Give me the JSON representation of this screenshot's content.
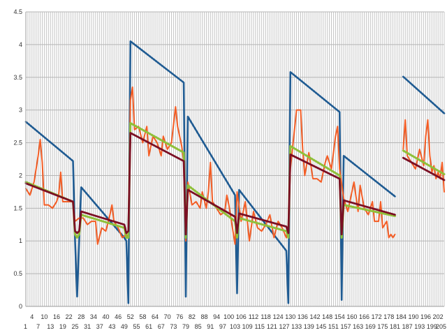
{
  "chart_data": {
    "type": "line",
    "title": "",
    "xlabel": "",
    "ylabel": "",
    "ylim": [
      0,
      4.5
    ],
    "xlim": [
      1,
      205
    ],
    "grid": true,
    "legend": "none",
    "y_ticks": [
      "0",
      "0.5",
      "1",
      "1.5",
      "2",
      "2.5",
      "3",
      "3.5",
      "4",
      "4.5"
    ],
    "x_ticks_top": [
      "4",
      "10",
      "16",
      "22",
      "28",
      "34",
      "40",
      "46",
      "52",
      "58",
      "64",
      "70",
      "76",
      "82",
      "88",
      "94",
      "100",
      "106",
      "112",
      "118",
      "124",
      "130",
      "136",
      "142",
      "148",
      "154",
      "160",
      "166",
      "172",
      "178",
      "184",
      "190",
      "196",
      "202"
    ],
    "x_ticks_bottom": [
      "1",
      "7",
      "13",
      "19",
      "25",
      "31",
      "37",
      "43",
      "49",
      "55",
      "61",
      "67",
      "73",
      "79",
      "85",
      "91",
      "97",
      "103",
      "109",
      "115",
      "121",
      "127",
      "133",
      "139",
      "145",
      "151",
      "157",
      "163",
      "169",
      "175",
      "181",
      "187",
      "193",
      "199",
      "205"
    ],
    "series": [
      {
        "color": "#1f5b92",
        "points": [
          [
            1,
            2.82
          ],
          [
            24,
            2.22
          ],
          [
            25,
            1.0
          ],
          [
            26,
            0.15
          ],
          [
            27,
            1.0
          ],
          [
            28,
            1.82
          ],
          [
            49,
            1.05
          ],
          [
            50,
            1.0
          ],
          [
            51,
            0.05
          ],
          [
            52,
            4.05
          ],
          [
            78,
            3.42
          ],
          [
            79,
            0.15
          ],
          [
            80,
            2.9
          ],
          [
            103,
            1.7
          ],
          [
            104,
            0.2
          ],
          [
            105,
            1.78
          ],
          [
            128,
            0.85
          ],
          [
            129,
            0.05
          ],
          [
            130,
            3.58
          ],
          [
            154,
            2.97
          ],
          [
            155,
            0.1
          ],
          [
            156,
            2.3
          ],
          [
            181,
            1.68
          ],
          [
            null,
            null
          ],
          [
            185,
            3.51
          ],
          [
            205,
            2.95
          ]
        ]
      },
      {
        "color": "#f25c24",
        "points": [
          [
            1,
            1.8
          ],
          [
            3,
            1.7
          ],
          [
            5,
            1.9
          ],
          [
            7,
            2.3
          ],
          [
            8,
            2.55
          ],
          [
            9,
            2.2
          ],
          [
            10,
            1.55
          ],
          [
            12,
            1.55
          ],
          [
            14,
            1.5
          ],
          [
            16,
            1.6
          ],
          [
            17,
            1.7
          ],
          [
            18,
            2.05
          ],
          [
            19,
            1.6
          ],
          [
            20,
            1.6
          ],
          [
            24,
            1.6
          ],
          [
            25,
            1.3
          ],
          [
            27,
            1.35
          ],
          [
            29,
            1.35
          ],
          [
            31,
            1.25
          ],
          [
            33,
            1.3
          ],
          [
            35,
            1.3
          ],
          [
            36,
            0.95
          ],
          [
            38,
            1.2
          ],
          [
            40,
            1.15
          ],
          [
            42,
            1.4
          ],
          [
            43,
            1.55
          ],
          [
            44,
            1.3
          ],
          [
            46,
            1.2
          ],
          [
            48,
            1.05
          ],
          [
            50,
            1.1
          ],
          [
            51,
            1.05
          ],
          [
            52,
            3.15
          ],
          [
            53,
            3.35
          ],
          [
            54,
            2.7
          ],
          [
            56,
            2.75
          ],
          [
            58,
            2.5
          ],
          [
            60,
            2.75
          ],
          [
            61,
            2.3
          ],
          [
            63,
            2.6
          ],
          [
            65,
            2.5
          ],
          [
            67,
            2.3
          ],
          [
            68,
            2.6
          ],
          [
            70,
            2.4
          ],
          [
            72,
            2.5
          ],
          [
            74,
            3.05
          ],
          [
            75,
            2.75
          ],
          [
            77,
            2.45
          ],
          [
            78,
            2.2
          ],
          [
            79,
            1.0
          ],
          [
            80,
            1.9
          ],
          [
            82,
            1.55
          ],
          [
            84,
            1.6
          ],
          [
            86,
            1.5
          ],
          [
            87,
            1.75
          ],
          [
            89,
            1.5
          ],
          [
            90,
            1.75
          ],
          [
            91,
            2.2
          ],
          [
            92,
            1.6
          ],
          [
            94,
            1.5
          ],
          [
            96,
            1.4
          ],
          [
            98,
            1.45
          ],
          [
            99,
            1.7
          ],
          [
            100,
            1.55
          ],
          [
            103,
            0.95
          ],
          [
            104,
            1.75
          ],
          [
            106,
            1.3
          ],
          [
            108,
            1.6
          ],
          [
            110,
            1.0
          ],
          [
            112,
            1.45
          ],
          [
            114,
            1.2
          ],
          [
            116,
            1.15
          ],
          [
            118,
            1.25
          ],
          [
            120,
            1.4
          ],
          [
            122,
            1.05
          ],
          [
            124,
            1.3
          ],
          [
            126,
            1.2
          ],
          [
            128,
            1.05
          ],
          [
            129,
            1.2
          ],
          [
            130,
            2.1
          ],
          [
            131,
            2.4
          ],
          [
            133,
            3.0
          ],
          [
            135,
            3.0
          ],
          [
            136,
            2.4
          ],
          [
            137,
            2.0
          ],
          [
            139,
            2.35
          ],
          [
            141,
            1.95
          ],
          [
            143,
            1.95
          ],
          [
            145,
            1.9
          ],
          [
            147,
            2.2
          ],
          [
            148,
            2.3
          ],
          [
            150,
            2.1
          ],
          [
            152,
            2.6
          ],
          [
            153,
            2.75
          ],
          [
            154,
            2.1
          ],
          [
            156,
            1.65
          ],
          [
            158,
            1.45
          ],
          [
            159,
            1.6
          ],
          [
            161,
            1.9
          ],
          [
            163,
            1.45
          ],
          [
            164,
            1.85
          ],
          [
            166,
            1.5
          ],
          [
            168,
            1.4
          ],
          [
            170,
            1.6
          ],
          [
            171,
            1.3
          ],
          [
            173,
            1.3
          ],
          [
            174,
            1.6
          ],
          [
            175,
            1.2
          ],
          [
            177,
            1.3
          ],
          [
            178,
            1.05
          ],
          [
            179,
            1.1
          ],
          [
            180,
            1.05
          ],
          [
            181,
            1.1
          ],
          [
            null,
            null
          ],
          [
            185,
            2.4
          ],
          [
            186,
            2.85
          ],
          [
            187,
            2.3
          ],
          [
            189,
            2.2
          ],
          [
            191,
            2.1
          ],
          [
            193,
            2.4
          ],
          [
            195,
            2.15
          ],
          [
            196,
            2.6
          ],
          [
            197,
            2.85
          ],
          [
            198,
            2.3
          ],
          [
            199,
            2.05
          ],
          [
            200,
            2.15
          ],
          [
            201,
            1.95
          ],
          [
            202,
            2.05
          ],
          [
            203,
            1.95
          ],
          [
            204,
            2.2
          ],
          [
            205,
            1.75
          ]
        ]
      },
      {
        "color": "#8fc03a",
        "points": [
          [
            1,
            1.9
          ],
          [
            24,
            1.6
          ],
          [
            25,
            1.1
          ],
          [
            26,
            1.05
          ],
          [
            27,
            1.1
          ],
          [
            28,
            1.4
          ],
          [
            49,
            1.2
          ],
          [
            50,
            1.05
          ],
          [
            51,
            1.05
          ],
          [
            52,
            2.8
          ],
          [
            78,
            2.35
          ],
          [
            79,
            1.05
          ],
          [
            80,
            1.85
          ],
          [
            103,
            1.3
          ],
          [
            104,
            1.05
          ],
          [
            105,
            1.35
          ],
          [
            128,
            1.15
          ],
          [
            129,
            1.05
          ],
          [
            130,
            2.45
          ],
          [
            154,
            2.0
          ],
          [
            155,
            1.05
          ],
          [
            156,
            1.55
          ],
          [
            181,
            1.38
          ],
          [
            null,
            null
          ],
          [
            185,
            2.38
          ],
          [
            205,
            2.02
          ]
        ]
      },
      {
        "color": "#7b0f24",
        "points": [
          [
            1,
            1.88
          ],
          [
            24,
            1.6
          ],
          [
            25,
            1.15
          ],
          [
            26,
            1.12
          ],
          [
            27,
            1.15
          ],
          [
            28,
            1.45
          ],
          [
            49,
            1.25
          ],
          [
            50,
            1.12
          ],
          [
            51,
            1.15
          ],
          [
            52,
            2.65
          ],
          [
            78,
            2.22
          ],
          [
            79,
            1.1
          ],
          [
            80,
            1.78
          ],
          [
            103,
            1.37
          ],
          [
            104,
            1.12
          ],
          [
            105,
            1.42
          ],
          [
            128,
            1.22
          ],
          [
            129,
            1.12
          ],
          [
            130,
            2.32
          ],
          [
            154,
            1.95
          ],
          [
            155,
            1.1
          ],
          [
            156,
            1.62
          ],
          [
            181,
            1.4
          ],
          [
            null,
            null
          ],
          [
            185,
            2.27
          ],
          [
            205,
            1.93
          ]
        ]
      }
    ]
  }
}
